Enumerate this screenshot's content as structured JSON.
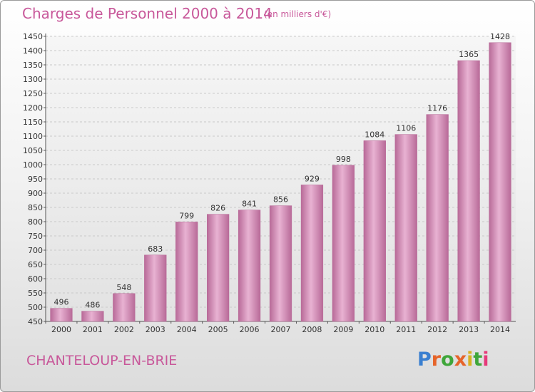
{
  "title": "Charges de Personnel 2000 à 2014",
  "subtitle": "(en milliers d'€)",
  "commune": "CHANTELOUP-EN-BRIE",
  "logo": {
    "letters": [
      "P",
      "r",
      "o",
      "x",
      "i",
      "t",
      "i"
    ],
    "colors": [
      "#3a7fd0",
      "#e6642a",
      "#3fa63a",
      "#e6642a",
      "#d8b21e",
      "#3fa63a",
      "#e63a7a"
    ]
  },
  "colors": {
    "bar": "#d67fb0",
    "bar_light": "#e8b2d2",
    "bar_dark": "#b86a98",
    "accent": "#c8589a"
  },
  "chart_data": {
    "type": "bar",
    "categories": [
      "2000",
      "2001",
      "2002",
      "2003",
      "2004",
      "2005",
      "2006",
      "2007",
      "2008",
      "2009",
      "2010",
      "2011",
      "2012",
      "2013",
      "2014"
    ],
    "values": [
      496,
      486,
      548,
      683,
      799,
      826,
      841,
      856,
      929,
      998,
      1084,
      1106,
      1176,
      1365,
      1428
    ],
    "ylim": [
      450,
      1450
    ],
    "yticks": [
      450,
      500,
      550,
      600,
      650,
      700,
      750,
      800,
      850,
      900,
      950,
      1000,
      1050,
      1100,
      1150,
      1200,
      1250,
      1300,
      1350,
      1400,
      1450
    ],
    "grid": true,
    "xlabel": "",
    "ylabel": ""
  }
}
